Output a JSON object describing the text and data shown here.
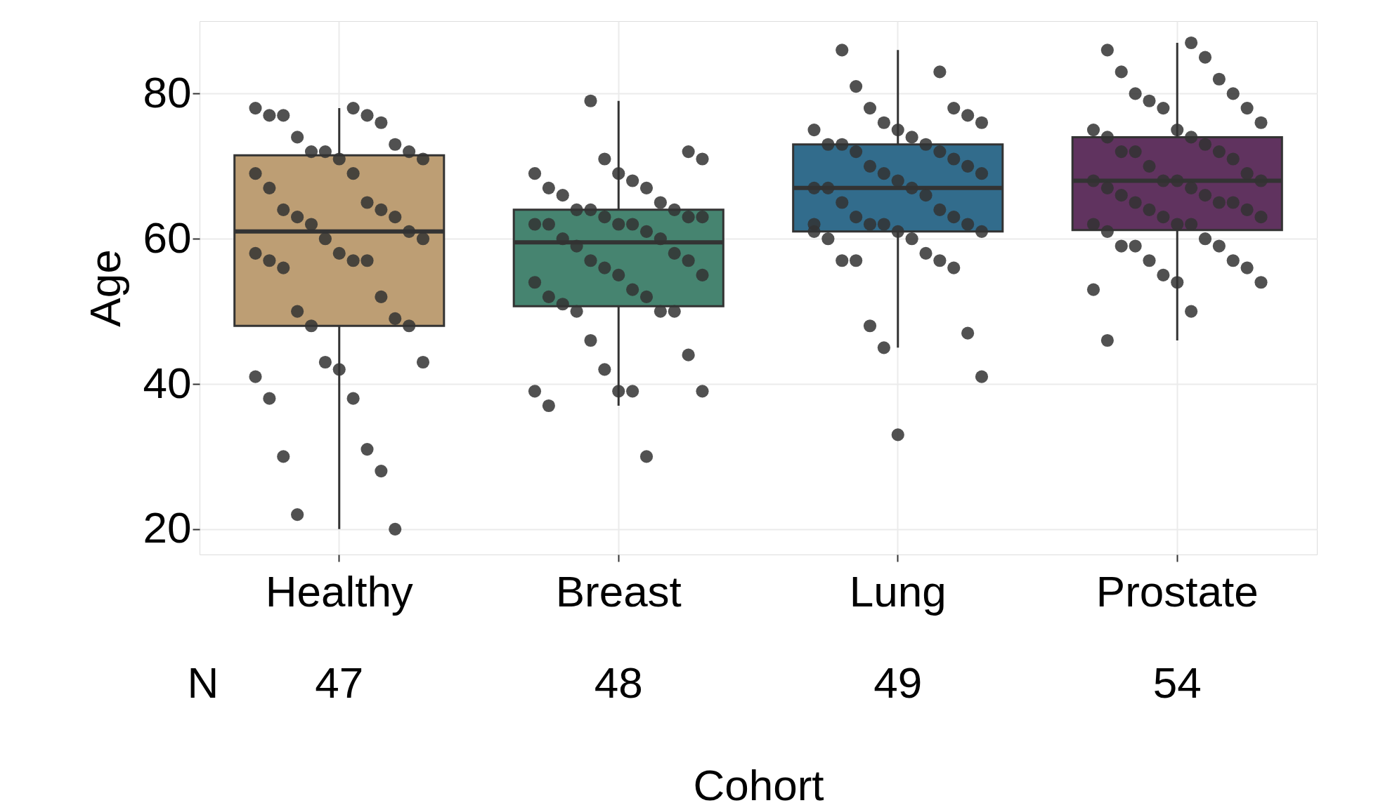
{
  "chart_data": {
    "type": "box",
    "xlabel": "Cohort",
    "ylabel": "Age",
    "categories": [
      "Healthy",
      "Breast",
      "Lung",
      "Prostate"
    ],
    "colors": [
      "#bd9e74",
      "#468470",
      "#326c8c",
      "#60335f"
    ],
    "boxes": [
      {
        "low": 20,
        "q1": 48,
        "median": 61,
        "q3": 71.5,
        "high": 78
      },
      {
        "low": 37,
        "q1": 50.7,
        "median": 59.5,
        "q3": 64,
        "high": 79
      },
      {
        "low": 45,
        "q1": 61,
        "median": 67,
        "q3": 73,
        "high": 86
      },
      {
        "low": 46,
        "q1": 61.2,
        "median": 68,
        "q3": 74,
        "high": 87
      }
    ],
    "series": [
      {
        "type": "scatter",
        "color": "#333333",
        "x": [
          "Healthy",
          "Healthy",
          "Healthy",
          "Healthy",
          "Healthy",
          "Healthy",
          "Healthy",
          "Healthy",
          "Healthy",
          "Healthy",
          "Healthy",
          "Healthy",
          "Healthy",
          "Healthy",
          "Healthy",
          "Healthy",
          "Healthy",
          "Healthy",
          "Healthy",
          "Healthy",
          "Healthy",
          "Healthy",
          "Healthy",
          "Healthy",
          "Healthy",
          "Healthy",
          "Healthy",
          "Healthy",
          "Healthy",
          "Healthy",
          "Healthy",
          "Healthy",
          "Healthy",
          "Healthy",
          "Healthy",
          "Healthy",
          "Healthy",
          "Healthy",
          "Healthy",
          "Healthy",
          "Healthy",
          "Healthy",
          "Healthy",
          "Healthy",
          "Healthy",
          "Healthy",
          "Healthy",
          "Breast",
          "Breast",
          "Breast",
          "Breast",
          "Breast",
          "Breast",
          "Breast",
          "Breast",
          "Breast",
          "Breast",
          "Breast",
          "Breast",
          "Breast",
          "Breast",
          "Breast",
          "Breast",
          "Breast",
          "Breast",
          "Breast",
          "Breast",
          "Breast",
          "Breast",
          "Breast",
          "Breast",
          "Breast",
          "Breast",
          "Breast",
          "Breast",
          "Breast",
          "Breast",
          "Breast",
          "Breast",
          "Breast",
          "Breast",
          "Breast",
          "Breast",
          "Breast",
          "Breast",
          "Breast",
          "Breast",
          "Breast",
          "Breast",
          "Breast",
          "Breast",
          "Breast",
          "Breast",
          "Breast",
          "Breast",
          "Lung",
          "Lung",
          "Lung",
          "Lung",
          "Lung",
          "Lung",
          "Lung",
          "Lung",
          "Lung",
          "Lung",
          "Lung",
          "Lung",
          "Lung",
          "Lung",
          "Lung",
          "Lung",
          "Lung",
          "Lung",
          "Lung",
          "Lung",
          "Lung",
          "Lung",
          "Lung",
          "Lung",
          "Lung",
          "Lung",
          "Lung",
          "Lung",
          "Lung",
          "Lung",
          "Lung",
          "Lung",
          "Lung",
          "Lung",
          "Lung",
          "Lung",
          "Lung",
          "Lung",
          "Lung",
          "Lung",
          "Lung",
          "Lung",
          "Lung",
          "Lung",
          "Lung",
          "Lung",
          "Lung",
          "Lung",
          "Lung",
          "Prostate",
          "Prostate",
          "Prostate",
          "Prostate",
          "Prostate",
          "Prostate",
          "Prostate",
          "Prostate",
          "Prostate",
          "Prostate",
          "Prostate",
          "Prostate",
          "Prostate",
          "Prostate",
          "Prostate",
          "Prostate",
          "Prostate",
          "Prostate",
          "Prostate",
          "Prostate",
          "Prostate",
          "Prostate",
          "Prostate",
          "Prostate",
          "Prostate",
          "Prostate",
          "Prostate",
          "Prostate",
          "Prostate",
          "Prostate",
          "Prostate",
          "Prostate",
          "Prostate",
          "Prostate",
          "Prostate",
          "Prostate",
          "Prostate",
          "Prostate",
          "Prostate",
          "Prostate",
          "Prostate",
          "Prostate",
          "Prostate",
          "Prostate",
          "Prostate",
          "Prostate",
          "Prostate",
          "Prostate",
          "Prostate",
          "Prostate",
          "Prostate",
          "Prostate",
          "Prostate",
          "Prostate"
        ],
        "values": [
          78,
          78,
          77,
          77,
          77,
          76,
          74,
          73,
          72,
          72,
          72,
          71,
          71,
          69,
          69,
          67,
          65,
          64,
          64,
          63,
          63,
          62,
          61,
          60,
          60,
          58,
          58,
          57,
          57,
          57,
          56,
          52,
          50,
          49,
          48,
          48,
          43,
          43,
          42,
          41,
          38,
          38,
          31,
          30,
          28,
          22,
          20,
          79,
          72,
          71,
          71,
          69,
          69,
          68,
          67,
          67,
          66,
          65,
          64,
          64,
          64,
          63,
          63,
          63,
          62,
          62,
          62,
          62,
          61,
          60,
          60,
          59,
          58,
          57,
          57,
          56,
          55,
          55,
          54,
          53,
          52,
          52,
          51,
          50,
          50,
          50,
          46,
          44,
          42,
          39,
          39,
          39,
          39,
          37,
          30,
          86,
          83,
          81,
          78,
          78,
          77,
          76,
          76,
          75,
          75,
          74,
          73,
          73,
          73,
          72,
          72,
          71,
          70,
          70,
          69,
          69,
          68,
          67,
          67,
          67,
          66,
          65,
          64,
          63,
          63,
          62,
          62,
          62,
          61,
          61,
          61,
          60,
          60,
          58,
          57,
          57,
          57,
          56,
          48,
          47,
          45,
          41,
          33,
          62,
          87,
          86,
          85,
          83,
          82,
          80,
          80,
          79,
          78,
          78,
          76,
          75,
          75,
          74,
          74,
          73,
          72,
          72,
          72,
          71,
          70,
          69,
          68,
          68,
          68,
          68,
          67,
          67,
          66,
          66,
          65,
          65,
          65,
          64,
          64,
          63,
          63,
          62,
          62,
          62,
          61,
          60,
          59,
          59,
          59,
          57,
          57,
          56,
          55,
          54,
          54,
          53,
          50,
          46
        ]
      }
    ],
    "ylim": [
      16.5,
      90
    ],
    "yticks": [
      20,
      40,
      60,
      80
    ],
    "grid": true,
    "annotations": [
      "N",
      "47",
      "48",
      "49",
      "54"
    ]
  }
}
